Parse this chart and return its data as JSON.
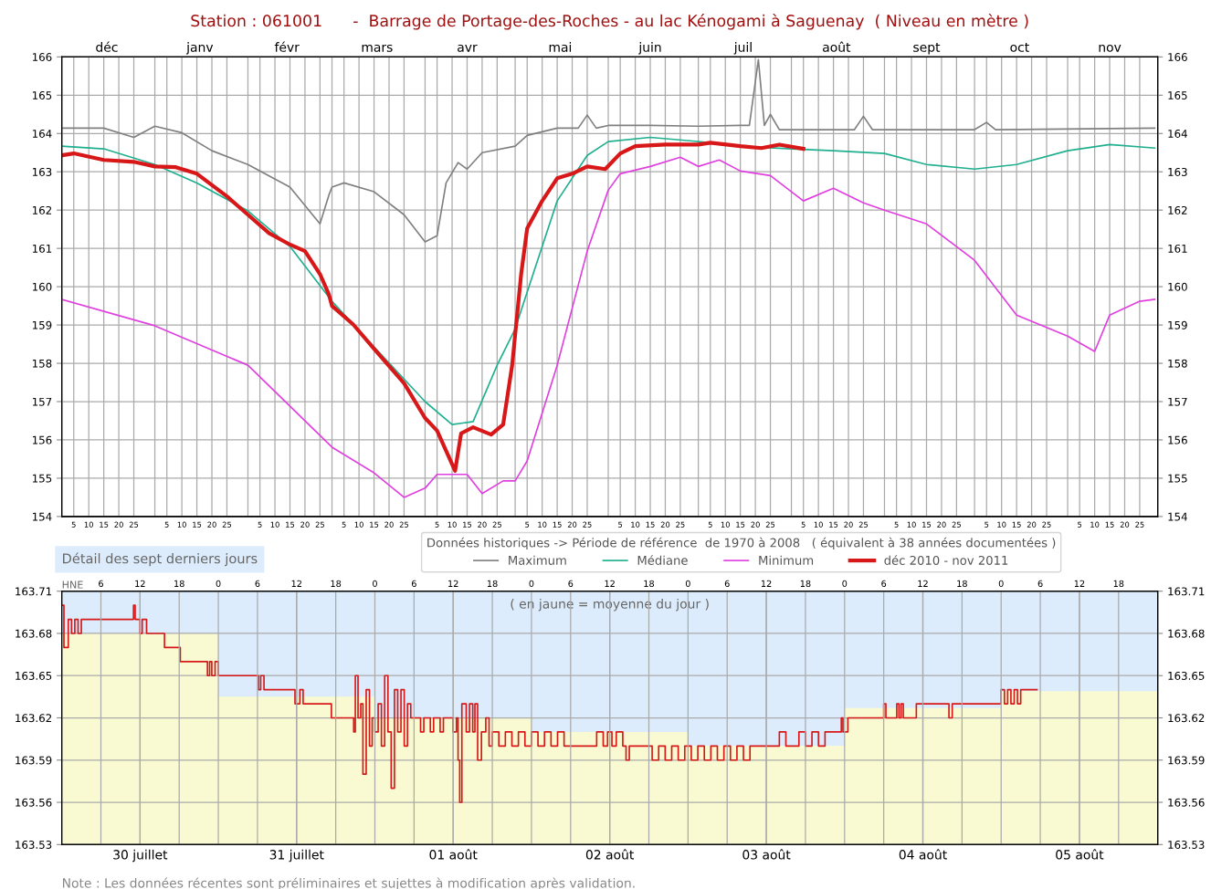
{
  "chart_data": [
    {
      "type": "line",
      "title": "Station : 061001      -  Barrage de Portage-des-Roches - au lac Kénogami à Saguenay  ( Niveau en mètre )",
      "legend_title": "Données historiques -> Période de référence  de 1970 à 2008   ( équivalent à 38 années documentées )",
      "legend": "bottom",
      "grid": true,
      "xlim": [
        "2010-12-01",
        "2011-12-01"
      ],
      "x2lim": [
        "2010-12-01",
        "2011-12-01"
      ],
      "ylim": [
        154,
        166
      ],
      "yticks": [
        154,
        155,
        156,
        157,
        158,
        159,
        160,
        161,
        162,
        163,
        164,
        165,
        166
      ],
      "y2lim": [
        154,
        166
      ],
      "y2ticks": [
        154,
        155,
        156,
        157,
        158,
        159,
        160,
        161,
        162,
        163,
        164,
        165,
        166
      ],
      "x2ticks": [
        {
          "value": "2010-12-16",
          "label": "déc"
        },
        {
          "value": "2011-01-16",
          "label": "janv"
        },
        {
          "value": "2011-02-14",
          "label": "févr"
        },
        {
          "value": "2011-03-16",
          "label": "mars"
        },
        {
          "value": "2011-04-15",
          "label": "avr"
        },
        {
          "value": "2011-05-16",
          "label": "mai"
        },
        {
          "value": "2011-06-15",
          "label": "juin"
        },
        {
          "value": "2011-07-16",
          "label": "juil"
        },
        {
          "value": "2011-08-16",
          "label": "août"
        },
        {
          "value": "2011-09-15",
          "label": "sept"
        },
        {
          "value": "2011-10-16",
          "label": "oct"
        },
        {
          "value": "2011-11-15",
          "label": "nov"
        }
      ],
      "xticks": [
        {
          "value": "2010-12-01",
          "label": null
        },
        {
          "value": "2010-12-05",
          "label": "5"
        },
        {
          "value": "2010-12-10",
          "label": "10"
        },
        {
          "value": "2010-12-15",
          "label": "15"
        },
        {
          "value": "2010-12-20",
          "label": "20"
        },
        {
          "value": "2010-12-25",
          "label": "25"
        },
        {
          "value": "2011-01-01",
          "label": null
        },
        {
          "value": "2011-01-05",
          "label": "5"
        },
        {
          "value": "2011-01-10",
          "label": "10"
        },
        {
          "value": "2011-01-15",
          "label": "15"
        },
        {
          "value": "2011-01-20",
          "label": "20"
        },
        {
          "value": "2011-01-25",
          "label": "25"
        },
        {
          "value": "2011-02-01",
          "label": null
        },
        {
          "value": "2011-02-05",
          "label": "5"
        },
        {
          "value": "2011-02-10",
          "label": "10"
        },
        {
          "value": "2011-02-15",
          "label": "15"
        },
        {
          "value": "2011-02-20",
          "label": "20"
        },
        {
          "value": "2011-02-25",
          "label": "25"
        },
        {
          "value": "2011-03-01",
          "label": null
        },
        {
          "value": "2011-03-05",
          "label": "5"
        },
        {
          "value": "2011-03-10",
          "label": "10"
        },
        {
          "value": "2011-03-15",
          "label": "15"
        },
        {
          "value": "2011-03-20",
          "label": "20"
        },
        {
          "value": "2011-03-25",
          "label": "25"
        },
        {
          "value": "2011-04-01",
          "label": null
        },
        {
          "value": "2011-04-05",
          "label": "5"
        },
        {
          "value": "2011-04-10",
          "label": "10"
        },
        {
          "value": "2011-04-15",
          "label": "15"
        },
        {
          "value": "2011-04-20",
          "label": "20"
        },
        {
          "value": "2011-04-25",
          "label": "25"
        },
        {
          "value": "2011-05-01",
          "label": null
        },
        {
          "value": "2011-05-05",
          "label": "5"
        },
        {
          "value": "2011-05-10",
          "label": "10"
        },
        {
          "value": "2011-05-15",
          "label": "15"
        },
        {
          "value": "2011-05-20",
          "label": "20"
        },
        {
          "value": "2011-05-25",
          "label": "25"
        },
        {
          "value": "2011-06-01",
          "label": null
        },
        {
          "value": "2011-06-05",
          "label": "5"
        },
        {
          "value": "2011-06-10",
          "label": "10"
        },
        {
          "value": "2011-06-15",
          "label": "15"
        },
        {
          "value": "2011-06-20",
          "label": "20"
        },
        {
          "value": "2011-06-25",
          "label": "25"
        },
        {
          "value": "2011-07-01",
          "label": null
        },
        {
          "value": "2011-07-05",
          "label": "5"
        },
        {
          "value": "2011-07-10",
          "label": "10"
        },
        {
          "value": "2011-07-15",
          "label": "15"
        },
        {
          "value": "2011-07-20",
          "label": "20"
        },
        {
          "value": "2011-07-25",
          "label": "25"
        },
        {
          "value": "2011-08-01",
          "label": null
        },
        {
          "value": "2011-08-05",
          "label": "5"
        },
        {
          "value": "2011-08-10",
          "label": "10"
        },
        {
          "value": "2011-08-15",
          "label": "15"
        },
        {
          "value": "2011-08-20",
          "label": "20"
        },
        {
          "value": "2011-08-25",
          "label": "25"
        },
        {
          "value": "2011-09-01",
          "label": null
        },
        {
          "value": "2011-09-05",
          "label": "5"
        },
        {
          "value": "2011-09-10",
          "label": "10"
        },
        {
          "value": "2011-09-15",
          "label": "15"
        },
        {
          "value": "2011-09-20",
          "label": "20"
        },
        {
          "value": "2011-09-25",
          "label": "25"
        },
        {
          "value": "2011-10-01",
          "label": null
        },
        {
          "value": "2011-10-05",
          "label": "5"
        },
        {
          "value": "2011-10-10",
          "label": "10"
        },
        {
          "value": "2011-10-15",
          "label": "15"
        },
        {
          "value": "2011-10-20",
          "label": "20"
        },
        {
          "value": "2011-10-25",
          "label": "25"
        },
        {
          "value": "2011-11-01",
          "label": null
        },
        {
          "value": "2011-11-05",
          "label": "5"
        },
        {
          "value": "2011-11-10",
          "label": "10"
        },
        {
          "value": "2011-11-15",
          "label": "15"
        },
        {
          "value": "2011-11-20",
          "label": "20"
        },
        {
          "value": "2011-11-25",
          "label": "25"
        }
      ],
      "series": [
        {
          "name": "Maximum",
          "color": "#808080",
          "x": [
            "2010-12-01",
            "2010-12-15",
            "2010-12-25",
            "2011-01-01",
            "2011-01-10",
            "2011-01-20",
            "2011-02-01",
            "2011-02-15",
            "2011-02-25",
            "2011-02-28",
            "2011-03-01",
            "2011-03-05",
            "2011-03-15",
            "2011-03-25",
            "2011-04-01",
            "2011-04-05",
            "2011-04-08",
            "2011-04-12",
            "2011-04-15",
            "2011-04-20",
            "2011-05-01",
            "2011-05-05",
            "2011-05-15",
            "2011-05-22",
            "2011-05-25",
            "2011-05-28",
            "2011-06-01",
            "2011-06-15",
            "2011-07-01",
            "2011-07-15",
            "2011-07-18",
            "2011-07-21",
            "2011-07-23",
            "2011-07-25",
            "2011-07-28",
            "2011-08-15",
            "2011-08-22",
            "2011-08-25",
            "2011-08-28",
            "2011-09-15",
            "2011-10-01",
            "2011-10-05",
            "2011-10-08",
            "2011-11-30"
          ],
          "values": [
            164.14,
            164.14,
            163.9,
            164.19,
            164.02,
            163.55,
            163.19,
            162.6,
            161.64,
            162.4,
            162.6,
            162.71,
            162.48,
            161.88,
            161.17,
            161.33,
            162.71,
            163.24,
            163.07,
            163.5,
            163.67,
            163.95,
            164.14,
            164.14,
            164.48,
            164.14,
            164.21,
            164.21,
            164.19,
            164.21,
            164.21,
            165.93,
            164.21,
            164.5,
            164.1,
            164.1,
            164.1,
            164.45,
            164.1,
            164.1,
            164.1,
            164.29,
            164.1,
            164.14
          ]
        },
        {
          "name": "Médiane",
          "color": "#20b090",
          "x": [
            "2010-12-01",
            "2010-12-15",
            "2011-01-01",
            "2011-01-15",
            "2011-02-01",
            "2011-02-15",
            "2011-03-01",
            "2011-03-15",
            "2011-04-01",
            "2011-04-10",
            "2011-04-17",
            "2011-04-25",
            "2011-05-01",
            "2011-05-05",
            "2011-05-15",
            "2011-05-25",
            "2011-06-01",
            "2011-06-15",
            "2011-07-01",
            "2011-07-15",
            "2011-08-01",
            "2011-08-15",
            "2011-09-01",
            "2011-09-15",
            "2011-10-01",
            "2011-10-15",
            "2011-11-01",
            "2011-11-15",
            "2011-11-30"
          ],
          "values": [
            163.67,
            163.6,
            163.19,
            162.71,
            161.98,
            161.05,
            159.62,
            158.43,
            157.0,
            156.4,
            156.48,
            157.95,
            158.9,
            159.86,
            162.24,
            163.43,
            163.79,
            163.9,
            163.79,
            163.67,
            163.6,
            163.55,
            163.48,
            163.19,
            163.07,
            163.19,
            163.55,
            163.71,
            163.62
          ]
        },
        {
          "name": "Minimum",
          "color": "#e040e0",
          "x": [
            "2010-12-01",
            "2011-01-01",
            "2011-02-01",
            "2011-03-01",
            "2011-03-15",
            "2011-03-25",
            "2011-04-01",
            "2011-04-05",
            "2011-04-15",
            "2011-04-20",
            "2011-04-27",
            "2011-05-01",
            "2011-05-05",
            "2011-05-15",
            "2011-05-25",
            "2011-06-01",
            "2011-06-05",
            "2011-06-15",
            "2011-06-25",
            "2011-07-01",
            "2011-07-08",
            "2011-07-15",
            "2011-07-25",
            "2011-08-05",
            "2011-08-15",
            "2011-08-25",
            "2011-09-01",
            "2011-09-15",
            "2011-10-01",
            "2011-10-15",
            "2011-11-01",
            "2011-11-10",
            "2011-11-15",
            "2011-11-25",
            "2011-11-30"
          ],
          "values": [
            159.67,
            158.98,
            157.95,
            155.81,
            155.14,
            154.5,
            154.74,
            155.1,
            155.1,
            154.6,
            154.93,
            154.93,
            155.45,
            157.95,
            160.93,
            162.52,
            162.95,
            163.14,
            163.38,
            163.14,
            163.31,
            163.02,
            162.9,
            162.24,
            162.57,
            162.19,
            162.0,
            161.64,
            160.69,
            159.26,
            158.71,
            158.31,
            159.26,
            159.62,
            159.67
          ]
        },
        {
          "name": "déc 2010 - nov 2011",
          "color": "#d81818",
          "x": [
            "2010-12-01",
            "2010-12-05",
            "2010-12-15",
            "2010-12-25",
            "2011-01-01",
            "2011-01-08",
            "2011-01-15",
            "2011-01-25",
            "2011-02-01",
            "2011-02-08",
            "2011-02-15",
            "2011-02-20",
            "2011-02-25",
            "2011-02-28",
            "2011-03-01",
            "2011-03-08",
            "2011-03-15",
            "2011-03-25",
            "2011-04-01",
            "2011-04-05",
            "2011-04-11",
            "2011-04-13",
            "2011-04-17",
            "2011-04-23",
            "2011-04-27",
            "2011-04-30",
            "2011-05-03",
            "2011-05-05",
            "2011-05-10",
            "2011-05-15",
            "2011-05-20",
            "2011-05-25",
            "2011-05-31",
            "2011-06-05",
            "2011-06-10",
            "2011-06-20",
            "2011-07-01",
            "2011-07-05",
            "2011-07-15",
            "2011-07-22",
            "2011-07-28",
            "2011-08-05"
          ],
          "values": [
            163.43,
            163.48,
            163.31,
            163.26,
            163.14,
            163.12,
            162.95,
            162.36,
            161.88,
            161.4,
            161.1,
            160.93,
            160.33,
            159.79,
            159.5,
            159.02,
            158.38,
            157.48,
            156.57,
            156.24,
            155.19,
            156.17,
            156.33,
            156.14,
            156.4,
            157.95,
            160.33,
            161.52,
            162.24,
            162.83,
            162.95,
            163.14,
            163.07,
            163.48,
            163.67,
            163.71,
            163.71,
            163.76,
            163.67,
            163.62,
            163.71,
            163.6
          ]
        }
      ]
    },
    {
      "type": "step",
      "title": "Détail des sept derniers jours",
      "x2label": "HNE",
      "grid": true,
      "bands": [
        {
          "axis": "y",
          "from": 163.6,
          "to": 163.71,
          "color": "#dcecfc"
        }
      ],
      "annotations": [
        "( en jaune = moyenne du jour )",
        "Note : Les données récentes sont préliminaires et sujettes à modification après validation."
      ],
      "xlim": [
        "2011-07-30T00:00",
        "2011-08-06T00:00"
      ],
      "x2lim": [
        "2011-07-30T00:00",
        "2011-08-06T00:00"
      ],
      "ylim": [
        163.53,
        163.71
      ],
      "yticks": [
        163.53,
        163.56,
        163.59,
        163.62,
        163.65,
        163.68,
        163.71
      ],
      "y2lim": [
        163.53,
        163.71
      ],
      "y2ticks": [
        163.53,
        163.56,
        163.59,
        163.62,
        163.65,
        163.68,
        163.71
      ],
      "xticks": [
        {
          "value": "2011-07-30T12:00",
          "label": "30 juillet"
        },
        {
          "value": "2011-07-31T12:00",
          "label": "31 juillet"
        },
        {
          "value": "2011-08-01T12:00",
          "label": "01 août"
        },
        {
          "value": "2011-08-02T12:00",
          "label": "02 août"
        },
        {
          "value": "2011-08-03T12:00",
          "label": "03 août"
        },
        {
          "value": "2011-08-04T12:00",
          "label": "04 août"
        },
        {
          "value": "2011-08-05T12:00",
          "label": "05 août"
        }
      ],
      "x2ticks": [
        {
          "value": "2011-07-30T06:00",
          "label": "6"
        },
        {
          "value": "2011-07-30T12:00",
          "label": "12"
        },
        {
          "value": "2011-07-30T18:00",
          "label": "18"
        },
        {
          "value": "2011-07-31T00:00",
          "label": "0"
        },
        {
          "value": "2011-07-31T06:00",
          "label": "6"
        },
        {
          "value": "2011-07-31T12:00",
          "label": "12"
        },
        {
          "value": "2011-07-31T18:00",
          "label": "18"
        },
        {
          "value": "2011-08-01T00:00",
          "label": "0"
        },
        {
          "value": "2011-08-01T06:00",
          "label": "6"
        },
        {
          "value": "2011-08-01T12:00",
          "label": "12"
        },
        {
          "value": "2011-08-01T18:00",
          "label": "18"
        },
        {
          "value": "2011-08-02T00:00",
          "label": "0"
        },
        {
          "value": "2011-08-02T06:00",
          "label": "6"
        },
        {
          "value": "2011-08-02T12:00",
          "label": "12"
        },
        {
          "value": "2011-08-02T18:00",
          "label": "18"
        },
        {
          "value": "2011-08-03T00:00",
          "label": "0"
        },
        {
          "value": "2011-08-03T06:00",
          "label": "6"
        },
        {
          "value": "2011-08-03T12:00",
          "label": "12"
        },
        {
          "value": "2011-08-03T18:00",
          "label": "18"
        },
        {
          "value": "2011-08-04T00:00",
          "label": "0"
        },
        {
          "value": "2011-08-04T06:00",
          "label": "6"
        },
        {
          "value": "2011-08-04T12:00",
          "label": "12"
        },
        {
          "value": "2011-08-04T18:00",
          "label": "18"
        },
        {
          "value": "2011-08-05T00:00",
          "label": "0"
        },
        {
          "value": "2011-08-05T06:00",
          "label": "6"
        },
        {
          "value": "2011-08-05T12:00",
          "label": "12"
        },
        {
          "value": "2011-08-05T18:00",
          "label": "18"
        }
      ],
      "series": [
        {
          "type": "bar",
          "color": "#fafad2",
          "x": [
            "2011-07-30T12:00",
            "2011-07-31T12:00",
            "2011-08-01T12:00",
            "2011-08-02T12:00",
            "2011-08-03T12:00",
            "2011-08-04T12:00",
            "2011-08-05T12:00"
          ],
          "values": [
            163.68,
            163.635,
            163.62,
            163.61,
            163.6,
            163.627,
            163.639
          ]
        },
        {
          "color": "#d81818",
          "x": [
            "2011-07-30T00:00",
            "2011-07-30T00:20",
            "2011-07-30T01:00",
            "2011-07-30T01:30",
            "2011-07-30T02:00",
            "2011-07-30T02:30",
            "2011-07-30T03:00",
            "2011-07-30T11:00",
            "2011-07-30T11:15",
            "2011-07-30T12:00",
            "2011-07-30T12:20",
            "2011-07-30T13:00",
            "2011-07-30T13:30",
            "2011-07-30T15:45",
            "2011-07-30T18:10",
            "2011-07-30T22:20",
            "2011-07-30T22:40",
            "2011-07-30T23:00",
            "2011-07-30T23:30",
            "2011-07-31T00:00",
            "2011-07-31T06:10",
            "2011-07-31T06:30",
            "2011-07-31T07:00",
            "2011-07-31T11:45",
            "2011-07-31T12:30",
            "2011-07-31T13:00",
            "2011-07-31T17:20",
            "2011-07-31T20:45",
            "2011-07-31T21:00",
            "2011-07-31T21:25",
            "2011-07-31T21:50",
            "2011-07-31T22:10",
            "2011-07-31T22:40",
            "2011-07-31T23:10",
            "2011-07-31T23:35",
            "2011-08-01T00:00",
            "2011-08-01T00:30",
            "2011-08-01T01:00",
            "2011-08-01T01:30",
            "2011-08-01T02:00",
            "2011-08-01T02:30",
            "2011-08-01T03:00",
            "2011-08-01T03:30",
            "2011-08-01T04:00",
            "2011-08-01T04:30",
            "2011-08-01T05:00",
            "2011-08-01T05:30",
            "2011-08-01T07:00",
            "2011-08-01T07:30",
            "2011-08-01T08:30",
            "2011-08-01T09:00",
            "2011-08-01T10:00",
            "2011-08-01T10:30",
            "2011-08-01T12:00",
            "2011-08-01T12:30",
            "2011-08-01T12:45",
            "2011-08-01T13:00",
            "2011-08-01T13:20",
            "2011-08-01T14:00",
            "2011-08-01T14:30",
            "2011-08-01T15:00",
            "2011-08-01T15:20",
            "2011-08-01T15:45",
            "2011-08-01T16:20",
            "2011-08-01T17:00",
            "2011-08-01T17:30",
            "2011-08-01T18:00",
            "2011-08-01T19:00",
            "2011-08-01T20:00",
            "2011-08-01T21:00",
            "2011-08-01T22:00",
            "2011-08-01T23:00",
            "2011-08-02T00:00",
            "2011-08-02T01:00",
            "2011-08-02T02:00",
            "2011-08-02T03:00",
            "2011-08-02T04:00",
            "2011-08-02T05:00",
            "2011-08-02T10:00",
            "2011-08-02T11:00",
            "2011-08-02T11:40",
            "2011-08-02T12:20",
            "2011-08-02T13:00",
            "2011-08-02T14:00",
            "2011-08-02T14:30",
            "2011-08-02T15:00",
            "2011-08-02T18:30",
            "2011-08-02T19:30",
            "2011-08-02T20:30",
            "2011-08-02T21:30",
            "2011-08-02T22:30",
            "2011-08-02T23:30",
            "2011-08-03T00:30",
            "2011-08-03T01:30",
            "2011-08-03T02:30",
            "2011-08-03T03:30",
            "2011-08-03T04:30",
            "2011-08-03T05:30",
            "2011-08-03T06:30",
            "2011-08-03T07:30",
            "2011-08-03T08:30",
            "2011-08-03T09:30",
            "2011-08-03T10:30",
            "2011-08-03T14:00",
            "2011-08-03T15:00",
            "2011-08-03T17:00",
            "2011-08-03T18:00",
            "2011-08-03T19:00",
            "2011-08-03T20:00",
            "2011-08-03T21:00",
            "2011-08-03T23:30",
            "2011-08-03T23:45",
            "2011-08-04T00:30",
            "2011-08-04T06:00",
            "2011-08-04T06:20",
            "2011-08-04T08:00",
            "2011-08-04T08:20",
            "2011-08-04T08:40",
            "2011-08-04T09:00",
            "2011-08-04T11:00",
            "2011-08-04T16:00",
            "2011-08-04T16:30",
            "2011-08-04T17:00",
            "2011-08-05T00:00",
            "2011-08-05T00:30",
            "2011-08-05T01:00",
            "2011-08-05T01:30",
            "2011-08-05T02:00",
            "2011-08-05T02:30",
            "2011-08-05T03:00",
            "2011-08-05T05:30"
          ],
          "values": [
            163.7,
            163.67,
            163.69,
            163.68,
            163.69,
            163.68,
            163.69,
            163.7,
            163.69,
            163.68,
            163.69,
            163.68,
            163.68,
            163.67,
            163.66,
            163.65,
            163.66,
            163.65,
            163.66,
            163.65,
            163.64,
            163.65,
            163.64,
            163.63,
            163.64,
            163.63,
            163.62,
            163.61,
            163.65,
            163.62,
            163.63,
            163.58,
            163.64,
            163.6,
            163.62,
            163.61,
            163.63,
            163.6,
            163.65,
            163.61,
            163.57,
            163.64,
            163.61,
            163.64,
            163.6,
            163.63,
            163.62,
            163.61,
            163.62,
            163.61,
            163.62,
            163.61,
            163.62,
            163.61,
            163.62,
            163.59,
            163.56,
            163.63,
            163.61,
            163.63,
            163.61,
            163.63,
            163.59,
            163.61,
            163.62,
            163.6,
            163.61,
            163.6,
            163.61,
            163.6,
            163.61,
            163.6,
            163.61,
            163.6,
            163.61,
            163.6,
            163.61,
            163.6,
            163.61,
            163.6,
            163.61,
            163.6,
            163.61,
            163.6,
            163.59,
            163.6,
            163.59,
            163.6,
            163.59,
            163.6,
            163.59,
            163.6,
            163.59,
            163.6,
            163.59,
            163.6,
            163.59,
            163.6,
            163.59,
            163.6,
            163.59,
            163.6,
            163.6,
            163.61,
            163.6,
            163.61,
            163.6,
            163.61,
            163.6,
            163.61,
            163.62,
            163.61,
            163.62,
            163.63,
            163.62,
            163.63,
            163.62,
            163.63,
            163.62,
            163.63,
            163.62,
            163.63,
            163.63,
            163.64,
            163.63,
            163.64,
            163.63,
            163.64,
            163.63,
            163.64,
            163.64
          ]
        }
      ]
    }
  ]
}
